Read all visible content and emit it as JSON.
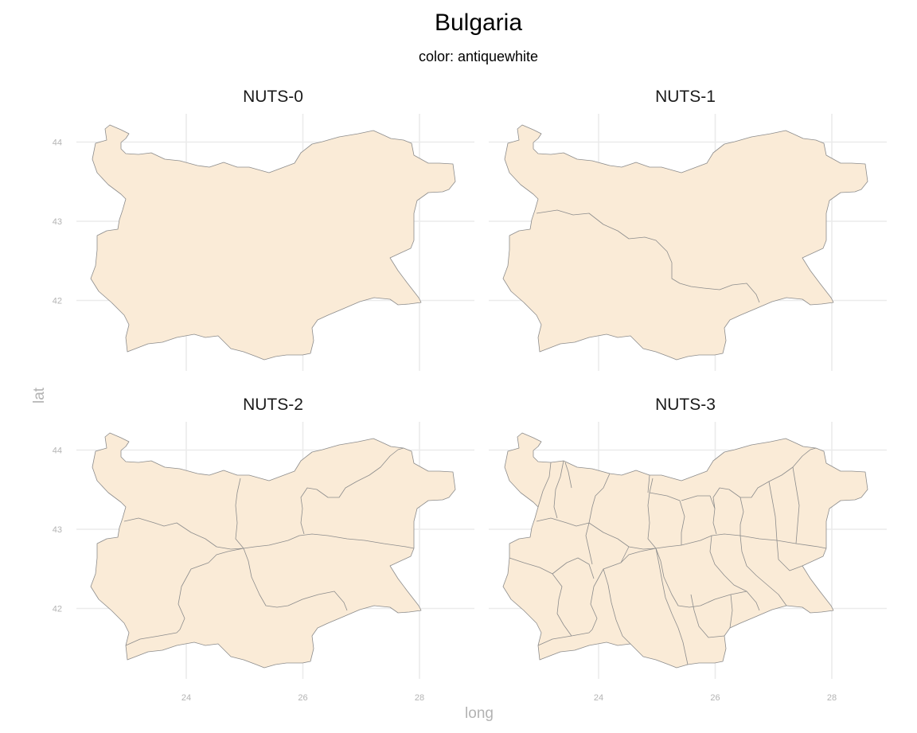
{
  "figure": {
    "title": "Bulgaria",
    "subtitle": "color: antiquewhite"
  },
  "chart_data": {
    "type": "map",
    "title": "Bulgaria",
    "subtitle": "color: antiquewhite",
    "xlabel": "long",
    "ylabel": "lat",
    "fill_color": "#faebd7",
    "border_color": "#8c8c8c",
    "grid": true,
    "xlim": [
      22.35,
      28.65
    ],
    "ylim": [
      41.2,
      44.25
    ],
    "x_ticks": [
      {
        "value": 24,
        "label": "24"
      },
      {
        "value": 26,
        "label": "26"
      },
      {
        "value": 28,
        "label": "28"
      }
    ],
    "y_ticks": [
      {
        "value": 42,
        "label": "42"
      },
      {
        "value": 43,
        "label": "43"
      },
      {
        "value": 44,
        "label": "44"
      }
    ],
    "facets": [
      {
        "label": "NUTS-0",
        "regions": 1
      },
      {
        "label": "NUTS-1",
        "regions": 2
      },
      {
        "label": "NUTS-2",
        "regions": 6
      },
      {
        "label": "NUTS-3",
        "regions": 28
      }
    ]
  }
}
